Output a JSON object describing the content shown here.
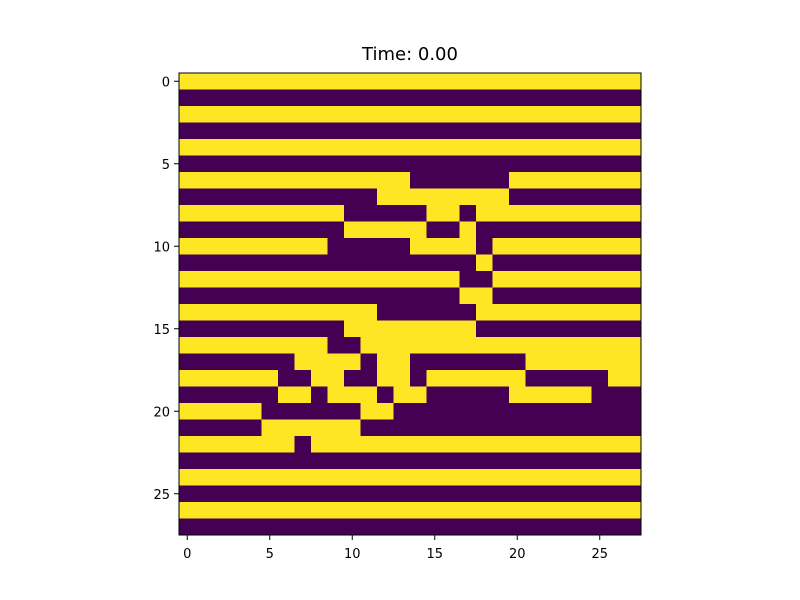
{
  "chart_data": {
    "type": "heatmap",
    "title": "Time: 0.00",
    "xlabel": "",
    "ylabel": "",
    "grid": false,
    "colormap": "viridis",
    "colors": {
      "low": "#440154",
      "high": "#fde725"
    },
    "rows": 28,
    "cols": 28,
    "x_ticks": [
      0,
      5,
      10,
      15,
      20,
      25
    ],
    "y_ticks": [
      0,
      5,
      10,
      15,
      20,
      25
    ],
    "xlim": [
      -0.5,
      27.5
    ],
    "ylim": [
      27.5,
      -0.5
    ],
    "values": [
      [
        1,
        1,
        1,
        1,
        1,
        1,
        1,
        1,
        1,
        1,
        1,
        1,
        1,
        1,
        1,
        1,
        1,
        1,
        1,
        1,
        1,
        1,
        1,
        1,
        1,
        1,
        1,
        1
      ],
      [
        0,
        0,
        0,
        0,
        0,
        0,
        0,
        0,
        0,
        0,
        0,
        0,
        0,
        0,
        0,
        0,
        0,
        0,
        0,
        0,
        0,
        0,
        0,
        0,
        0,
        0,
        0,
        0
      ],
      [
        1,
        1,
        1,
        1,
        1,
        1,
        1,
        1,
        1,
        1,
        1,
        1,
        1,
        1,
        1,
        1,
        1,
        1,
        1,
        1,
        1,
        1,
        1,
        1,
        1,
        1,
        1,
        1
      ],
      [
        0,
        0,
        0,
        0,
        0,
        0,
        0,
        0,
        0,
        0,
        0,
        0,
        0,
        0,
        0,
        0,
        0,
        0,
        0,
        0,
        0,
        0,
        0,
        0,
        0,
        0,
        0,
        0
      ],
      [
        1,
        1,
        1,
        1,
        1,
        1,
        1,
        1,
        1,
        1,
        1,
        1,
        1,
        1,
        1,
        1,
        1,
        1,
        1,
        1,
        1,
        1,
        1,
        1,
        1,
        1,
        1,
        1
      ],
      [
        0,
        0,
        0,
        0,
        0,
        0,
        0,
        0,
        0,
        0,
        0,
        0,
        0,
        0,
        0,
        0,
        0,
        0,
        0,
        0,
        0,
        0,
        0,
        0,
        0,
        0,
        0,
        0
      ],
      [
        1,
        1,
        1,
        1,
        1,
        1,
        1,
        1,
        1,
        1,
        1,
        1,
        1,
        1,
        0,
        0,
        0,
        0,
        0,
        0,
        1,
        1,
        1,
        1,
        1,
        1,
        1,
        1
      ],
      [
        0,
        0,
        0,
        0,
        0,
        0,
        0,
        0,
        0,
        0,
        0,
        0,
        1,
        1,
        1,
        1,
        1,
        1,
        1,
        1,
        0,
        0,
        0,
        0,
        0,
        0,
        0,
        0
      ],
      [
        1,
        1,
        1,
        1,
        1,
        1,
        1,
        1,
        1,
        1,
        0,
        0,
        0,
        0,
        0,
        1,
        1,
        0,
        1,
        1,
        1,
        1,
        1,
        1,
        1,
        1,
        1,
        1
      ],
      [
        0,
        0,
        0,
        0,
        0,
        0,
        0,
        0,
        0,
        0,
        1,
        1,
        1,
        1,
        1,
        0,
        0,
        1,
        0,
        0,
        0,
        0,
        0,
        0,
        0,
        0,
        0,
        0
      ],
      [
        1,
        1,
        1,
        1,
        1,
        1,
        1,
        1,
        1,
        0,
        0,
        0,
        0,
        0,
        1,
        1,
        1,
        1,
        0,
        1,
        1,
        1,
        1,
        1,
        1,
        1,
        1,
        1
      ],
      [
        0,
        0,
        0,
        0,
        0,
        0,
        0,
        0,
        0,
        0,
        0,
        0,
        0,
        0,
        0,
        0,
        0,
        0,
        1,
        0,
        0,
        0,
        0,
        0,
        0,
        0,
        0,
        0
      ],
      [
        1,
        1,
        1,
        1,
        1,
        1,
        1,
        1,
        1,
        1,
        1,
        1,
        1,
        1,
        1,
        1,
        1,
        0,
        0,
        1,
        1,
        1,
        1,
        1,
        1,
        1,
        1,
        1
      ],
      [
        0,
        0,
        0,
        0,
        0,
        0,
        0,
        0,
        0,
        0,
        0,
        0,
        0,
        0,
        0,
        0,
        0,
        1,
        1,
        0,
        0,
        0,
        0,
        0,
        0,
        0,
        0,
        0
      ],
      [
        1,
        1,
        1,
        1,
        1,
        1,
        1,
        1,
        1,
        1,
        1,
        1,
        0,
        0,
        0,
        0,
        0,
        0,
        1,
        1,
        1,
        1,
        1,
        1,
        1,
        1,
        1,
        1
      ],
      [
        0,
        0,
        0,
        0,
        0,
        0,
        0,
        0,
        0,
        0,
        1,
        1,
        1,
        1,
        1,
        1,
        1,
        1,
        0,
        0,
        0,
        0,
        0,
        0,
        0,
        0,
        0,
        0
      ],
      [
        1,
        1,
        1,
        1,
        1,
        1,
        1,
        1,
        1,
        0,
        0,
        1,
        1,
        1,
        1,
        1,
        1,
        1,
        1,
        1,
        1,
        1,
        1,
        1,
        1,
        1,
        1,
        1
      ],
      [
        0,
        0,
        0,
        0,
        0,
        0,
        0,
        1,
        1,
        1,
        1,
        0,
        1,
        1,
        0,
        0,
        0,
        0,
        0,
        0,
        0,
        1,
        1,
        1,
        1,
        1,
        1,
        1
      ],
      [
        1,
        1,
        1,
        1,
        1,
        1,
        0,
        0,
        1,
        1,
        0,
        0,
        1,
        1,
        0,
        1,
        1,
        1,
        1,
        1,
        1,
        0,
        0,
        0,
        0,
        0,
        1,
        1
      ],
      [
        0,
        0,
        0,
        0,
        0,
        0,
        1,
        1,
        0,
        1,
        1,
        1,
        0,
        1,
        1,
        0,
        0,
        0,
        0,
        0,
        1,
        1,
        1,
        1,
        1,
        0,
        0,
        0
      ],
      [
        1,
        1,
        1,
        1,
        1,
        0,
        0,
        0,
        0,
        0,
        0,
        1,
        1,
        0,
        0,
        0,
        0,
        0,
        0,
        0,
        0,
        0,
        0,
        0,
        0,
        0,
        0,
        0
      ],
      [
        0,
        0,
        0,
        0,
        0,
        1,
        1,
        1,
        1,
        1,
        1,
        0,
        0,
        0,
        0,
        0,
        0,
        0,
        0,
        0,
        0,
        0,
        0,
        0,
        0,
        0,
        0,
        0
      ],
      [
        1,
        1,
        1,
        1,
        1,
        1,
        1,
        0,
        1,
        1,
        1,
        1,
        1,
        1,
        1,
        1,
        1,
        1,
        1,
        1,
        1,
        1,
        1,
        1,
        1,
        1,
        1,
        1
      ],
      [
        0,
        0,
        0,
        0,
        0,
        0,
        0,
        0,
        0,
        0,
        0,
        0,
        0,
        0,
        0,
        0,
        0,
        0,
        0,
        0,
        0,
        0,
        0,
        0,
        0,
        0,
        0,
        0
      ],
      [
        1,
        1,
        1,
        1,
        1,
        1,
        1,
        1,
        1,
        1,
        1,
        1,
        1,
        1,
        1,
        1,
        1,
        1,
        1,
        1,
        1,
        1,
        1,
        1,
        1,
        1,
        1,
        1
      ],
      [
        0,
        0,
        0,
        0,
        0,
        0,
        0,
        0,
        0,
        0,
        0,
        0,
        0,
        0,
        0,
        0,
        0,
        0,
        0,
        0,
        0,
        0,
        0,
        0,
        0,
        0,
        0,
        0
      ],
      [
        1,
        1,
        1,
        1,
        1,
        1,
        1,
        1,
        1,
        1,
        1,
        1,
        1,
        1,
        1,
        1,
        1,
        1,
        1,
        1,
        1,
        1,
        1,
        1,
        1,
        1,
        1,
        1
      ],
      [
        0,
        0,
        0,
        0,
        0,
        0,
        0,
        0,
        0,
        0,
        0,
        0,
        0,
        0,
        0,
        0,
        0,
        0,
        0,
        0,
        0,
        0,
        0,
        0,
        0,
        0,
        0,
        0
      ]
    ]
  }
}
